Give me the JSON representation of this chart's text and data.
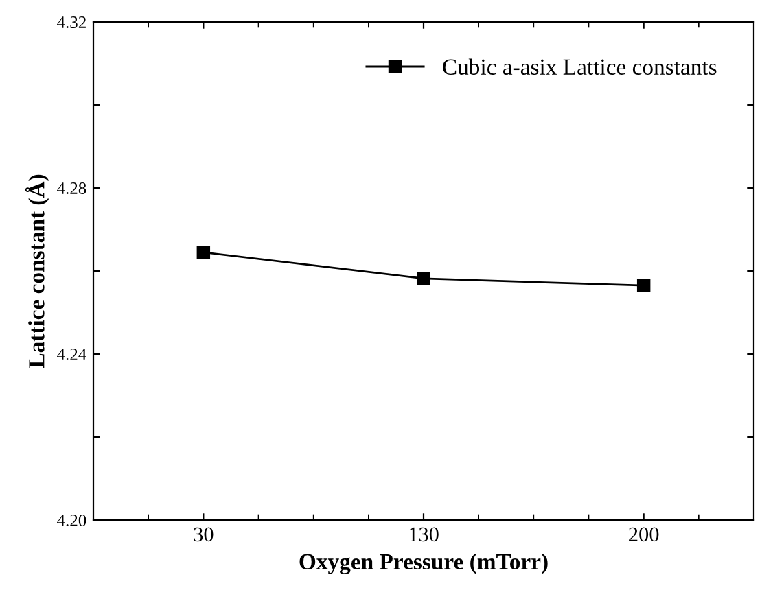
{
  "chart_data": {
    "type": "line",
    "xlabel": "Oxygen Pressure (mTorr)",
    "ylabel": "Lattice constant (Å)",
    "categories": [
      "30",
      "130",
      "200"
    ],
    "series": [
      {
        "name": "Cubic a-asix Lattice constants",
        "color": "#000000",
        "values": [
          4.2645,
          4.2582,
          4.2565
        ]
      }
    ],
    "ylim": [
      4.2,
      4.32
    ],
    "yticks": [
      {
        "value": 4.2,
        "label": "4.20"
      },
      {
        "value": 4.22,
        "label": null
      },
      4.24,
      {
        "value": 4.26,
        "label": null
      },
      4.28,
      {
        "value": 4.3,
        "label": null
      },
      4.32
    ],
    "marker": "square",
    "line_style": "solid",
    "grid": false,
    "legend": "top right"
  }
}
